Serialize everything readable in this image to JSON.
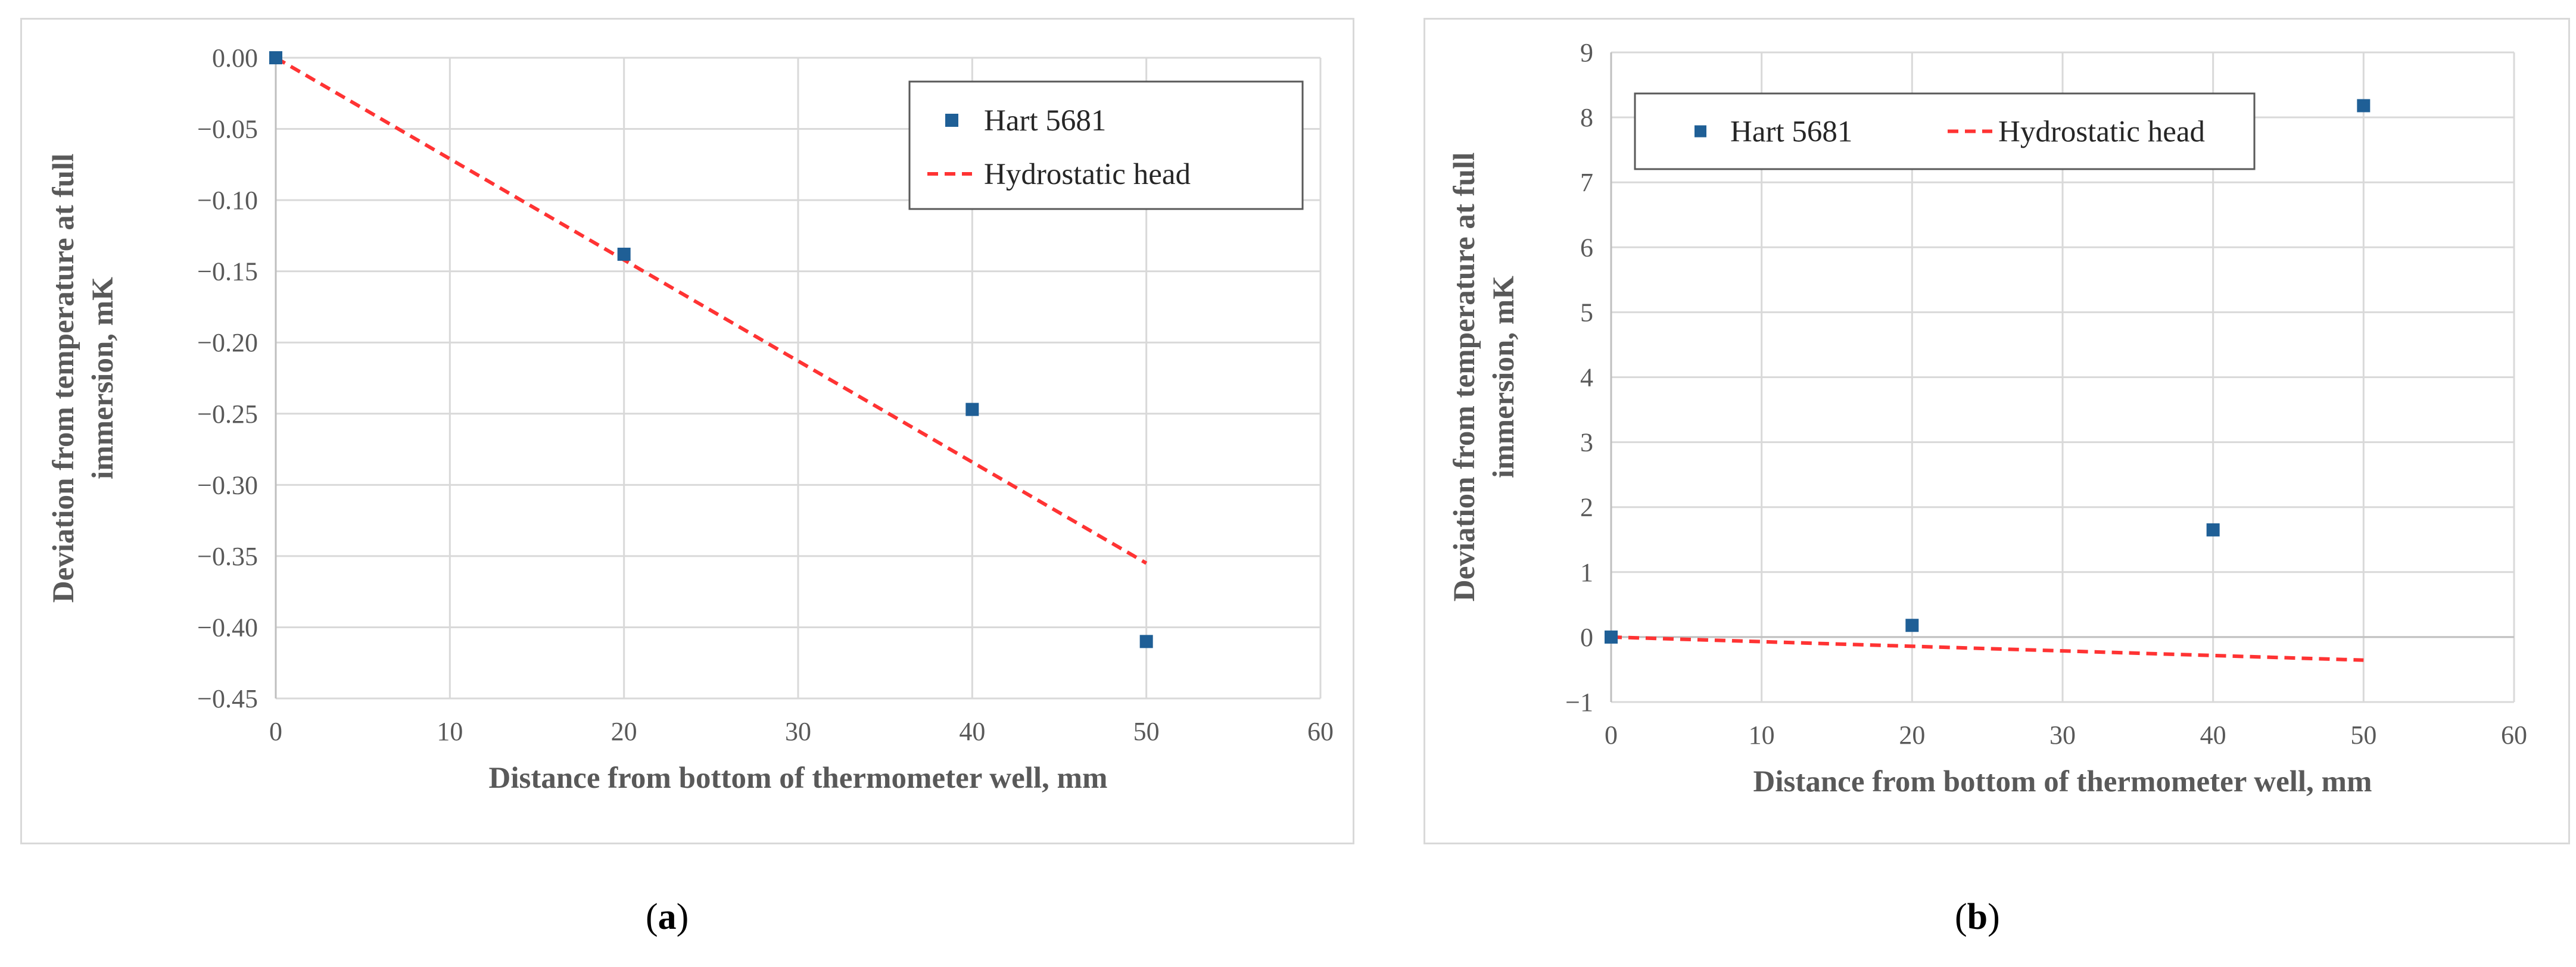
{
  "chart_data": [
    {
      "type": "scatter",
      "panel": "a",
      "caption_letter": "a",
      "xlabel": "Distance from bottom of thermometer well, mm",
      "ylabel": "Deviation from temperature at full immersion, mK",
      "ylabel_lines": [
        "Deviation from temperature at full",
        "immersion, mK"
      ],
      "xlim": [
        0,
        60
      ],
      "ylim": [
        -0.45,
        0.0
      ],
      "x_ticks": [
        0,
        10,
        20,
        30,
        40,
        50,
        60
      ],
      "x_tick_labels": [
        "0",
        "10",
        "20",
        "30",
        "40",
        "50",
        "60"
      ],
      "y_ticks": [
        0.0,
        -0.05,
        -0.1,
        -0.15,
        -0.2,
        -0.25,
        -0.3,
        -0.35,
        -0.4,
        -0.45
      ],
      "y_tick_labels": [
        "0.00",
        "−0.05",
        "−0.10",
        "−0.15",
        "−0.20",
        "−0.25",
        "−0.30",
        "−0.35",
        "−0.40",
        "−0.45"
      ],
      "grid": true,
      "legend_position": "top-right",
      "series": [
        {
          "name": "Hart 5681",
          "kind": "markers",
          "color": "#1f5f96",
          "x": [
            0,
            20,
            40,
            50
          ],
          "y": [
            0.0,
            -0.138,
            -0.247,
            -0.41
          ]
        },
        {
          "name": "Hydrostatic head",
          "kind": "dashed-line",
          "color": "#ff3333",
          "x": [
            0,
            50
          ],
          "y": [
            0.0,
            -0.355
          ]
        }
      ]
    },
    {
      "type": "scatter",
      "panel": "b",
      "caption_letter": "b",
      "xlabel": "Distance from bottom of thermometer well, mm",
      "ylabel": "Deviation from temperature at full immersion, mK",
      "ylabel_lines": [
        "Deviation from temperature at full",
        "immersion, mK"
      ],
      "xlim": [
        0,
        60
      ],
      "ylim": [
        -1,
        9
      ],
      "x_ticks": [
        0,
        10,
        20,
        30,
        40,
        50,
        60
      ],
      "x_tick_labels": [
        "0",
        "10",
        "20",
        "30",
        "40",
        "50",
        "60"
      ],
      "y_ticks": [
        -1,
        0,
        1,
        2,
        3,
        4,
        5,
        6,
        7,
        8,
        9
      ],
      "y_tick_labels": [
        "−1",
        "0",
        "1",
        "2",
        "3",
        "4",
        "5",
        "6",
        "7",
        "8",
        "9"
      ],
      "grid": true,
      "legend_position": "top-left",
      "series": [
        {
          "name": "Hart 5681",
          "kind": "markers",
          "color": "#1f5f96",
          "x": [
            0,
            20,
            40,
            50
          ],
          "y": [
            0.0,
            0.18,
            1.65,
            8.18
          ]
        },
        {
          "name": "Hydrostatic head",
          "kind": "dashed-line",
          "color": "#ff3333",
          "x": [
            0,
            50
          ],
          "y": [
            0.0,
            -0.355
          ]
        }
      ]
    }
  ]
}
